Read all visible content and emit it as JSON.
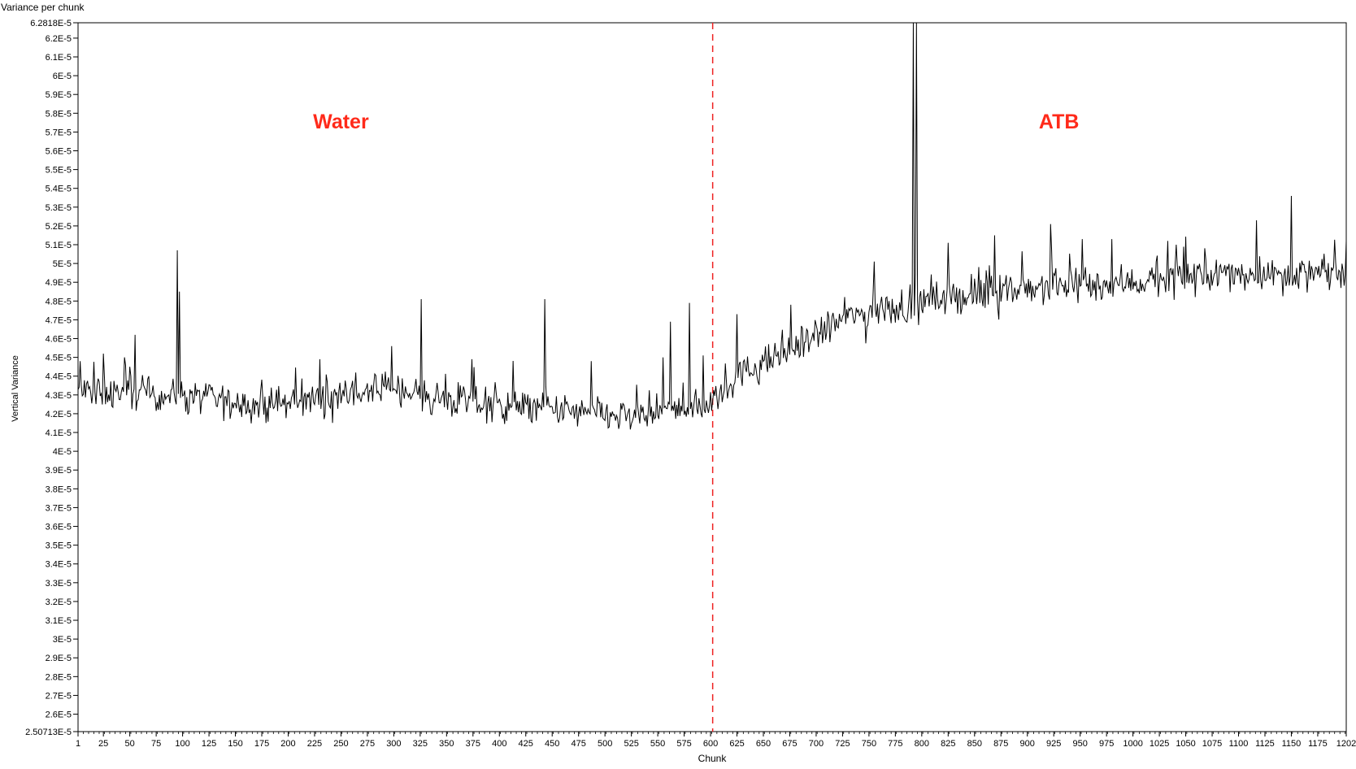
{
  "window_title": "Variance per chunk",
  "chart_data": {
    "type": "line",
    "title": "Variance per chunk",
    "xlabel": "Chunk",
    "ylabel": "Vertical Variance",
    "xlim": [
      1,
      1202
    ],
    "ylim": [
      2.50713e-05,
      6.2818e-05
    ],
    "x_tick_labels": [
      "1",
      "25",
      "50",
      "75",
      "100",
      "125",
      "150",
      "175",
      "200",
      "225",
      "250",
      "275",
      "300",
      "325",
      "350",
      "375",
      "400",
      "425",
      "450",
      "475",
      "500",
      "525",
      "550",
      "575",
      "600",
      "625",
      "650",
      "675",
      "700",
      "725",
      "750",
      "775",
      "800",
      "825",
      "850",
      "875",
      "900",
      "925",
      "950",
      "975",
      "1000",
      "1025",
      "1050",
      "1075",
      "1100",
      "1125",
      "1150",
      "1175",
      "1202"
    ],
    "y_tick_labels": [
      "2.50713E-5",
      "2.6E-5",
      "2.7E-5",
      "2.8E-5",
      "2.9E-5",
      "3E-5",
      "3.1E-5",
      "3.2E-5",
      "3.3E-5",
      "3.4E-5",
      "3.5E-5",
      "3.6E-5",
      "3.7E-5",
      "3.8E-5",
      "3.9E-5",
      "4E-5",
      "4.1E-5",
      "4.2E-5",
      "4.3E-5",
      "4.4E-5",
      "4.5E-5",
      "4.6E-5",
      "4.7E-5",
      "4.8E-5",
      "4.9E-5",
      "5E-5",
      "5.1E-5",
      "5.2E-5",
      "5.3E-5",
      "5.4E-5",
      "5.5E-5",
      "5.6E-5",
      "5.7E-5",
      "5.8E-5",
      "5.9E-5",
      "6E-5",
      "6.1E-5",
      "6.2E-5",
      "6.2818E-5"
    ],
    "grid": false,
    "series": [
      {
        "color": "#000000",
        "trend": [
          [
            1,
            4.32e-05
          ],
          [
            100,
            4.3e-05
          ],
          [
            175,
            4.24e-05
          ],
          [
            300,
            4.34e-05
          ],
          [
            350,
            4.27e-05
          ],
          [
            450,
            4.22e-05
          ],
          [
            520,
            4.18e-05
          ],
          [
            600,
            4.25e-05
          ],
          [
            620,
            4.38e-05
          ],
          [
            680,
            4.55e-05
          ],
          [
            730,
            4.72e-05
          ],
          [
            790,
            4.78e-05
          ],
          [
            830,
            4.82e-05
          ],
          [
            900,
            4.87e-05
          ],
          [
            1000,
            4.9e-05
          ],
          [
            1100,
            4.95e-05
          ],
          [
            1202,
            4.94e-05
          ]
        ],
        "spikes": [
          [
            3,
            4.48e-05
          ],
          [
            25,
            4.52e-05
          ],
          [
            45,
            4.5e-05
          ],
          [
            55,
            4.62e-05
          ],
          [
            95,
            5.07e-05
          ],
          [
            97,
            4.85e-05
          ],
          [
            230,
            4.49e-05
          ],
          [
            298,
            4.56e-05
          ],
          [
            326,
            4.81e-05
          ],
          [
            374,
            4.49e-05
          ],
          [
            443,
            4.81e-05
          ],
          [
            487,
            4.48e-05
          ],
          [
            555,
            4.5e-05
          ],
          [
            562,
            4.69e-05
          ],
          [
            580,
            4.79e-05
          ],
          [
            593,
            4.51e-05
          ],
          [
            625,
            4.73e-05
          ],
          [
            676,
            4.78e-05
          ],
          [
            755,
            5.01e-05
          ],
          [
            792,
            6.2818e-05
          ],
          [
            795,
            6.2818e-05
          ],
          [
            825,
            5.11e-05
          ],
          [
            869,
            5.15e-05
          ],
          [
            922,
            5.21e-05
          ],
          [
            952,
            5.13e-05
          ],
          [
            980,
            5.13e-05
          ],
          [
            1033,
            5.12e-05
          ],
          [
            1117,
            5.23e-05
          ],
          [
            1150,
            5.36e-05
          ]
        ]
      }
    ],
    "annotations": [
      {
        "text": "Water",
        "color": "#ff2a1a",
        "x": 250,
        "y": 5.72e-05
      },
      {
        "text": "ATB",
        "color": "#ff2a1a",
        "x": 930,
        "y": 5.72e-05
      }
    ],
    "divider": {
      "x": 602,
      "color": "#ee2222",
      "style": "dashed"
    }
  }
}
